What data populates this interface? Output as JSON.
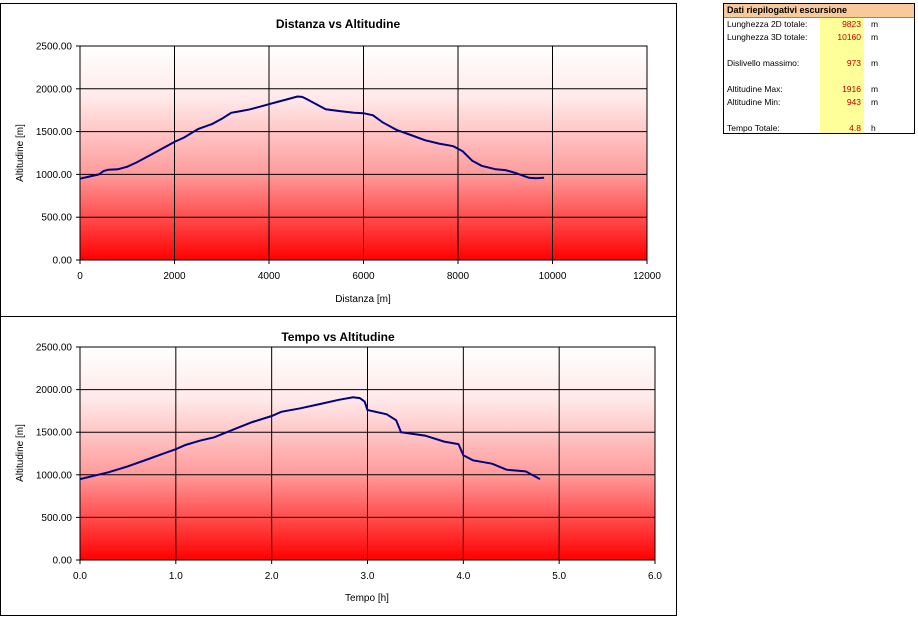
{
  "charts": [
    {
      "title": "Distanza vs Altitudine",
      "xlabel": "Distanza [m]",
      "ylabel": "Altitudine [m]",
      "xticks": [
        "0",
        "2000",
        "4000",
        "6000",
        "8000",
        "10000",
        "12000"
      ],
      "yticks": [
        "0.00",
        "500.00",
        "1000.00",
        "1500.00",
        "2000.00",
        "2500.00"
      ]
    },
    {
      "title": "Tempo vs Altitudine",
      "xlabel": "Tempo [h]",
      "ylabel": "Altitudine [m]",
      "xticks": [
        "0.0",
        "1.0",
        "2.0",
        "3.0",
        "4.0",
        "5.0",
        "6.0"
      ],
      "yticks": [
        "0.00",
        "500.00",
        "1000.00",
        "1500.00",
        "2000.00",
        "2500.00"
      ]
    }
  ],
  "chart_data": [
    {
      "type": "line",
      "title": "Distanza vs Altitudine",
      "xlabel": "Distanza [m]",
      "ylabel": "Altitudine [m]",
      "xlim": [
        0,
        12000
      ],
      "ylim": [
        0,
        2500
      ],
      "grid": true,
      "line_color": "#000080",
      "background": "gradient white to red",
      "series": [
        {
          "x": [
            0,
            200,
            400,
            500,
            600,
            800,
            1000,
            1200,
            1500,
            1800,
            2000,
            2200,
            2500,
            2800,
            3000,
            3200,
            3400,
            3600,
            3800,
            4000,
            4200,
            4400,
            4600,
            4700,
            4800,
            5000,
            5200,
            5500,
            5800,
            6000,
            6200,
            6400,
            6700,
            7000,
            7300,
            7600,
            7900,
            8100,
            8300,
            8500,
            8800,
            9000,
            9200,
            9400,
            9500,
            9650,
            9823
          ],
          "y": [
            950,
            975,
            1000,
            1040,
            1055,
            1060,
            1090,
            1140,
            1230,
            1320,
            1380,
            1430,
            1530,
            1590,
            1650,
            1720,
            1740,
            1760,
            1790,
            1820,
            1850,
            1880,
            1910,
            1905,
            1880,
            1820,
            1760,
            1740,
            1720,
            1715,
            1690,
            1610,
            1520,
            1460,
            1400,
            1360,
            1330,
            1270,
            1160,
            1100,
            1060,
            1050,
            1020,
            980,
            960,
            955,
            960
          ]
        }
      ]
    },
    {
      "type": "line",
      "title": "Tempo vs Altitudine",
      "xlabel": "Tempo [h]",
      "ylabel": "Altitudine [m]",
      "xlim": [
        0,
        6
      ],
      "ylim": [
        0,
        2500
      ],
      "grid": true,
      "line_color": "#000080",
      "background": "gradient white to red",
      "series": [
        {
          "x": [
            0,
            0.15,
            0.3,
            0.5,
            0.7,
            0.9,
            1.0,
            1.1,
            1.25,
            1.4,
            1.6,
            1.8,
            2.0,
            2.1,
            2.3,
            2.5,
            2.7,
            2.85,
            2.92,
            2.97,
            3.0,
            3.2,
            3.3,
            3.35,
            3.6,
            3.8,
            3.95,
            4.0,
            4.1,
            4.3,
            4.45,
            4.65,
            4.75,
            4.8
          ],
          "y": [
            950,
            990,
            1030,
            1100,
            1180,
            1260,
            1300,
            1350,
            1400,
            1440,
            1530,
            1620,
            1690,
            1740,
            1780,
            1830,
            1880,
            1910,
            1900,
            1860,
            1760,
            1710,
            1640,
            1500,
            1460,
            1390,
            1360,
            1230,
            1170,
            1130,
            1060,
            1040,
            980,
            950
          ]
        }
      ]
    }
  ],
  "summary": {
    "title": "Dati riepilogativi escursione",
    "rows": [
      {
        "label": "Lunghezza 2D totale:",
        "value": "9823",
        "unit": "m"
      },
      {
        "label": "Lunghezza 3D totale:",
        "value": "10160",
        "unit": "m"
      },
      {
        "label": "Dislivello massimo:",
        "value": "973",
        "unit": "m"
      },
      {
        "label": "Altitudine Max:",
        "value": "1916",
        "unit": "m"
      },
      {
        "label": "Altitudine Min:",
        "value": "943",
        "unit": "m"
      },
      {
        "label": "Tempo Totale:",
        "value": "4.8",
        "unit": "h"
      }
    ]
  }
}
